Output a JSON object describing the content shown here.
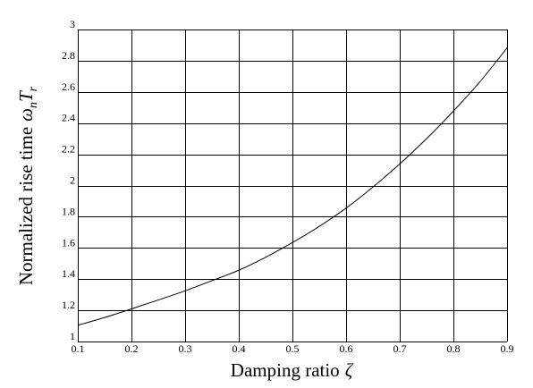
{
  "chart_data": {
    "type": "line",
    "title": "",
    "xlabel": "Damping ratio",
    "xlabel_symbol": "ζ",
    "ylabel": "Normalized rise time",
    "ylabel_symbol": "ω",
    "ylabel_symbol_sub": "n",
    "ylabel_symbol2": "T",
    "ylabel_symbol2_sub": "r",
    "xlim": [
      0.1,
      0.9
    ],
    "ylim": [
      1,
      3
    ],
    "grid": true,
    "legend": "none",
    "x_ticks": [
      0.1,
      0.2,
      0.3,
      0.4,
      0.5,
      0.6,
      0.7,
      0.8,
      0.9
    ],
    "x_tick_labels": [
      "0.1",
      "0.2",
      "0.3",
      "0.4",
      "0.5",
      "0.6",
      "0.7",
      "0.8",
      "0.9"
    ],
    "y_ticks": [
      1,
      1.2,
      1.4,
      1.6,
      1.8,
      2,
      2.2,
      2.4,
      2.6,
      2.8,
      3
    ],
    "y_tick_labels": [
      "1",
      "1.2",
      "1.4",
      "1.6",
      "1.8",
      "2",
      "2.2",
      "2.4",
      "2.6",
      "2.8",
      "3"
    ],
    "series": [
      {
        "x": [
          0.1,
          0.15,
          0.2,
          0.25,
          0.3,
          0.35,
          0.4,
          0.45,
          0.5,
          0.55,
          0.6,
          0.65,
          0.7,
          0.75,
          0.8,
          0.85,
          0.9
        ],
        "values": [
          1.104,
          1.154,
          1.209,
          1.266,
          1.325,
          1.39,
          1.457,
          1.54,
          1.634,
          1.738,
          1.855,
          1.99,
          2.138,
          2.3,
          2.477,
          2.667,
          2.882
        ]
      }
    ]
  }
}
